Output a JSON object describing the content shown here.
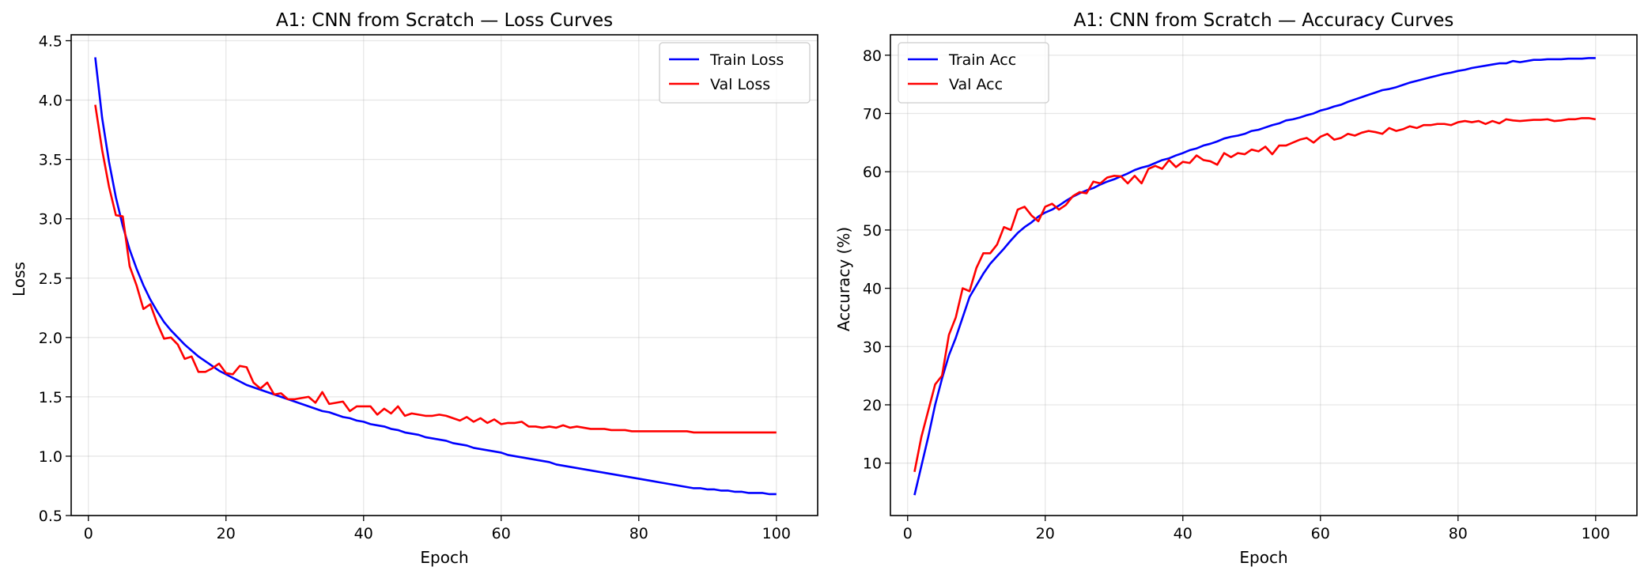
{
  "chart_data": [
    {
      "type": "line",
      "title": "A1: CNN from Scratch — Loss Curves",
      "xlabel": "Epoch",
      "ylabel": "Loss",
      "xlim": [
        -2.5,
        106
      ],
      "ylim": [
        0.5,
        4.55
      ],
      "xticks": [
        0,
        20,
        40,
        60,
        80,
        100
      ],
      "yticks": [
        0.5,
        1.0,
        1.5,
        2.0,
        2.5,
        3.0,
        3.5,
        4.0,
        4.5
      ],
      "ytick_decimals": 1,
      "grid": true,
      "legend_position": "upper right",
      "series": [
        {
          "name": "Train Loss",
          "color": "#0000ff",
          "x": [
            1,
            2,
            3,
            4,
            5,
            6,
            7,
            8,
            9,
            10,
            11,
            12,
            13,
            14,
            15,
            16,
            17,
            18,
            19,
            20,
            21,
            22,
            23,
            24,
            25,
            26,
            27,
            28,
            29,
            30,
            31,
            32,
            33,
            34,
            35,
            36,
            37,
            38,
            39,
            40,
            41,
            42,
            43,
            44,
            45,
            46,
            47,
            48,
            49,
            50,
            51,
            52,
            53,
            54,
            55,
            56,
            57,
            58,
            59,
            60,
            61,
            62,
            63,
            64,
            65,
            66,
            67,
            68,
            69,
            70,
            71,
            72,
            73,
            74,
            75,
            76,
            77,
            78,
            79,
            80,
            81,
            82,
            83,
            84,
            85,
            86,
            87,
            88,
            89,
            90,
            91,
            92,
            93,
            94,
            95,
            96,
            97,
            98,
            99,
            100
          ],
          "y": [
            4.36,
            3.85,
            3.48,
            3.18,
            2.94,
            2.74,
            2.58,
            2.44,
            2.32,
            2.22,
            2.13,
            2.06,
            2.0,
            1.94,
            1.89,
            1.84,
            1.8,
            1.76,
            1.72,
            1.69,
            1.66,
            1.63,
            1.6,
            1.58,
            1.56,
            1.54,
            1.52,
            1.5,
            1.48,
            1.46,
            1.44,
            1.42,
            1.4,
            1.38,
            1.37,
            1.35,
            1.33,
            1.32,
            1.3,
            1.29,
            1.27,
            1.26,
            1.25,
            1.23,
            1.22,
            1.2,
            1.19,
            1.18,
            1.16,
            1.15,
            1.14,
            1.13,
            1.11,
            1.1,
            1.09,
            1.07,
            1.06,
            1.05,
            1.04,
            1.03,
            1.01,
            1.0,
            0.99,
            0.98,
            0.97,
            0.96,
            0.95,
            0.93,
            0.92,
            0.91,
            0.9,
            0.89,
            0.88,
            0.87,
            0.86,
            0.85,
            0.84,
            0.83,
            0.82,
            0.81,
            0.8,
            0.79,
            0.78,
            0.77,
            0.76,
            0.75,
            0.74,
            0.73,
            0.73,
            0.72,
            0.72,
            0.71,
            0.71,
            0.7,
            0.7,
            0.69,
            0.69,
            0.69,
            0.68,
            0.68
          ]
        },
        {
          "name": "Val Loss",
          "color": "#ff0000",
          "x": [
            1,
            2,
            3,
            4,
            5,
            6,
            7,
            8,
            9,
            10,
            11,
            12,
            13,
            14,
            15,
            16,
            17,
            18,
            19,
            20,
            21,
            22,
            23,
            24,
            25,
            26,
            27,
            28,
            29,
            30,
            31,
            32,
            33,
            34,
            35,
            36,
            37,
            38,
            39,
            40,
            41,
            42,
            43,
            44,
            45,
            46,
            47,
            48,
            49,
            50,
            51,
            52,
            53,
            54,
            55,
            56,
            57,
            58,
            59,
            60,
            61,
            62,
            63,
            64,
            65,
            66,
            67,
            68,
            69,
            70,
            71,
            72,
            73,
            74,
            75,
            76,
            77,
            78,
            79,
            80,
            81,
            82,
            83,
            84,
            85,
            86,
            87,
            88,
            89,
            90,
            91,
            92,
            93,
            94,
            95,
            96,
            97,
            98,
            99,
            100
          ],
          "y": [
            3.96,
            3.58,
            3.27,
            3.03,
            3.02,
            2.6,
            2.44,
            2.24,
            2.28,
            2.12,
            1.99,
            2.0,
            1.94,
            1.82,
            1.84,
            1.71,
            1.71,
            1.74,
            1.78,
            1.7,
            1.69,
            1.76,
            1.75,
            1.62,
            1.57,
            1.62,
            1.52,
            1.53,
            1.48,
            1.48,
            1.49,
            1.5,
            1.45,
            1.54,
            1.44,
            1.45,
            1.46,
            1.38,
            1.42,
            1.42,
            1.42,
            1.35,
            1.4,
            1.36,
            1.42,
            1.34,
            1.36,
            1.35,
            1.34,
            1.34,
            1.35,
            1.34,
            1.32,
            1.3,
            1.33,
            1.29,
            1.32,
            1.28,
            1.31,
            1.27,
            1.28,
            1.28,
            1.29,
            1.25,
            1.25,
            1.24,
            1.25,
            1.24,
            1.26,
            1.24,
            1.25,
            1.24,
            1.23,
            1.23,
            1.23,
            1.22,
            1.22,
            1.22,
            1.21,
            1.21,
            1.21,
            1.21,
            1.21,
            1.21,
            1.21,
            1.21,
            1.21,
            1.2,
            1.2,
            1.2,
            1.2,
            1.2,
            1.2,
            1.2,
            1.2,
            1.2,
            1.2,
            1.2,
            1.2,
            1.2
          ]
        }
      ]
    },
    {
      "type": "line",
      "title": "A1: CNN from Scratch — Accuracy Curves",
      "xlabel": "Epoch",
      "ylabel": "Accuracy (%)",
      "xlim": [
        -2.5,
        106
      ],
      "ylim": [
        1,
        83.5
      ],
      "xticks": [
        0,
        20,
        40,
        60,
        80,
        100
      ],
      "yticks": [
        10,
        20,
        30,
        40,
        50,
        60,
        70,
        80
      ],
      "ytick_decimals": 0,
      "grid": true,
      "legend_position": "upper left",
      "series": [
        {
          "name": "Train Acc",
          "color": "#0000ff",
          "x": [
            1,
            2,
            3,
            4,
            5,
            6,
            7,
            8,
            9,
            10,
            11,
            12,
            13,
            14,
            15,
            16,
            17,
            18,
            19,
            20,
            21,
            22,
            23,
            24,
            25,
            26,
            27,
            28,
            29,
            30,
            31,
            32,
            33,
            34,
            35,
            36,
            37,
            38,
            39,
            40,
            41,
            42,
            43,
            44,
            45,
            46,
            47,
            48,
            49,
            50,
            51,
            52,
            53,
            54,
            55,
            56,
            57,
            58,
            59,
            60,
            61,
            62,
            63,
            64,
            65,
            66,
            67,
            68,
            69,
            70,
            71,
            72,
            73,
            74,
            75,
            76,
            77,
            78,
            79,
            80,
            81,
            82,
            83,
            84,
            85,
            86,
            87,
            88,
            89,
            90,
            91,
            92,
            93,
            94,
            95,
            96,
            97,
            98,
            99,
            100
          ],
          "y": [
            4.5,
            9.5,
            14.5,
            20.0,
            24.5,
            28.5,
            31.5,
            35.0,
            38.5,
            40.5,
            42.5,
            44.2,
            45.5,
            46.8,
            48.2,
            49.5,
            50.5,
            51.3,
            52.3,
            53.0,
            53.5,
            54.2,
            55.0,
            55.7,
            56.3,
            56.8,
            57.2,
            57.8,
            58.3,
            58.7,
            59.2,
            59.7,
            60.3,
            60.7,
            61.0,
            61.5,
            62.0,
            62.3,
            62.8,
            63.2,
            63.7,
            64.0,
            64.5,
            64.8,
            65.2,
            65.7,
            66.0,
            66.2,
            66.5,
            67.0,
            67.2,
            67.6,
            68.0,
            68.3,
            68.8,
            69.0,
            69.3,
            69.7,
            70.0,
            70.5,
            70.8,
            71.2,
            71.5,
            72.0,
            72.4,
            72.8,
            73.2,
            73.6,
            74.0,
            74.2,
            74.5,
            74.9,
            75.3,
            75.6,
            75.9,
            76.2,
            76.5,
            76.8,
            77.0,
            77.3,
            77.5,
            77.8,
            78.0,
            78.2,
            78.4,
            78.6,
            78.6,
            79.0,
            78.8,
            79.0,
            79.2,
            79.2,
            79.3,
            79.3,
            79.3,
            79.4,
            79.4,
            79.4,
            79.5,
            79.5
          ]
        },
        {
          "name": "Val Acc",
          "color": "#ff0000",
          "x": [
            1,
            2,
            3,
            4,
            5,
            6,
            7,
            8,
            9,
            10,
            11,
            12,
            13,
            14,
            15,
            16,
            17,
            18,
            19,
            20,
            21,
            22,
            23,
            24,
            25,
            26,
            27,
            28,
            29,
            30,
            31,
            32,
            33,
            34,
            35,
            36,
            37,
            38,
            39,
            40,
            41,
            42,
            43,
            44,
            45,
            46,
            47,
            48,
            49,
            50,
            51,
            52,
            53,
            54,
            55,
            56,
            57,
            58,
            59,
            60,
            61,
            62,
            63,
            64,
            65,
            66,
            67,
            68,
            69,
            70,
            71,
            72,
            73,
            74,
            75,
            76,
            77,
            78,
            79,
            80,
            81,
            82,
            83,
            84,
            85,
            86,
            87,
            88,
            89,
            90,
            91,
            92,
            93,
            94,
            95,
            96,
            97,
            98,
            99,
            100
          ],
          "y": [
            8.5,
            14.5,
            19.0,
            23.5,
            25.0,
            32.0,
            35.0,
            40.0,
            39.5,
            43.5,
            46.0,
            46.0,
            47.5,
            50.5,
            50.0,
            53.5,
            54.0,
            52.5,
            51.5,
            54.0,
            54.5,
            53.5,
            54.3,
            55.8,
            56.5,
            56.3,
            58.3,
            58.0,
            59.0,
            59.3,
            59.2,
            58.0,
            59.3,
            58.0,
            60.5,
            61.0,
            60.5,
            62.0,
            60.8,
            61.7,
            61.5,
            62.8,
            62.0,
            61.8,
            61.2,
            63.2,
            62.5,
            63.2,
            63.0,
            63.8,
            63.5,
            64.3,
            63.0,
            64.5,
            64.5,
            65.0,
            65.5,
            65.8,
            65.0,
            66.0,
            66.5,
            65.5,
            65.8,
            66.5,
            66.2,
            66.7,
            67.0,
            66.8,
            66.5,
            67.5,
            67.0,
            67.3,
            67.8,
            67.5,
            68.0,
            68.0,
            68.2,
            68.2,
            68.0,
            68.5,
            68.7,
            68.5,
            68.7,
            68.2,
            68.7,
            68.3,
            69.0,
            68.8,
            68.7,
            68.8,
            68.9,
            68.9,
            69.0,
            68.7,
            68.8,
            69.0,
            69.0,
            69.2,
            69.2,
            69.0
          ]
        }
      ]
    }
  ]
}
